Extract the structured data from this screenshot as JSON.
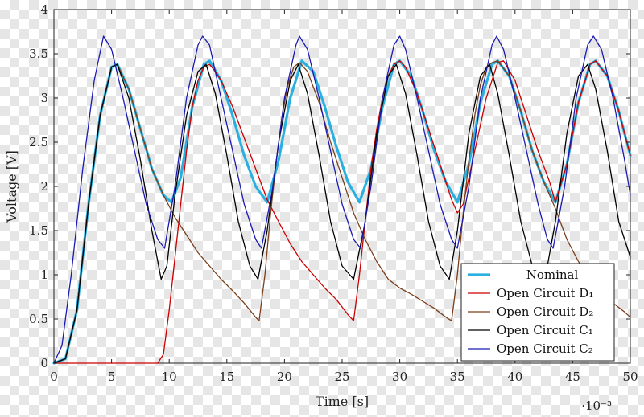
{
  "chart_data": {
    "type": "line",
    "title": "",
    "xlabel": "Time [s]",
    "ylabel": "Voltage [V]",
    "x_scale_note": "·10⁻³",
    "xlim": [
      0,
      50
    ],
    "ylim": [
      0,
      4
    ],
    "x_ticks": [
      "0",
      "5",
      "10",
      "15",
      "20",
      "25",
      "30",
      "35",
      "40",
      "45",
      "50"
    ],
    "y_ticks": [
      "0",
      "0.5",
      "1",
      "1.5",
      "2",
      "2.5",
      "3",
      "3.5",
      "4"
    ],
    "grid": false,
    "legend_position": "bottom-right",
    "series": [
      {
        "name": "Nominal",
        "color": "#2ab0e0",
        "width": 3.2,
        "points": [
          [
            0,
            0
          ],
          [
            1,
            0.05
          ],
          [
            2,
            0.6
          ],
          [
            3,
            1.8
          ],
          [
            4,
            2.8
          ],
          [
            5,
            3.35
          ],
          [
            5.5,
            3.38
          ],
          [
            6.5,
            3.1
          ],
          [
            7.5,
            2.65
          ],
          [
            8.5,
            2.2
          ],
          [
            9.5,
            1.9
          ],
          [
            10.2,
            1.82
          ],
          [
            11,
            2.1
          ],
          [
            12,
            2.9
          ],
          [
            13,
            3.38
          ],
          [
            13.5,
            3.42
          ],
          [
            14.5,
            3.2
          ],
          [
            15.5,
            2.8
          ],
          [
            16.5,
            2.35
          ],
          [
            17.5,
            2.0
          ],
          [
            18.5,
            1.82
          ],
          [
            19.5,
            2.3
          ],
          [
            20.5,
            3.0
          ],
          [
            21.5,
            3.42
          ],
          [
            22.5,
            3.3
          ],
          [
            23.5,
            2.9
          ],
          [
            24.5,
            2.45
          ],
          [
            25.5,
            2.05
          ],
          [
            26.5,
            1.82
          ],
          [
            27.5,
            2.2
          ],
          [
            28.5,
            2.9
          ],
          [
            29.5,
            3.38
          ],
          [
            30,
            3.42
          ],
          [
            31,
            3.25
          ],
          [
            32,
            2.85
          ],
          [
            33,
            2.4
          ],
          [
            34,
            2.05
          ],
          [
            35,
            1.82
          ],
          [
            36,
            2.25
          ],
          [
            37,
            2.95
          ],
          [
            38,
            3.38
          ],
          [
            38.5,
            3.42
          ],
          [
            39.5,
            3.25
          ],
          [
            40.5,
            2.85
          ],
          [
            41.5,
            2.4
          ],
          [
            42.5,
            2.05
          ],
          [
            43.5,
            1.82
          ],
          [
            44.5,
            2.25
          ],
          [
            45.5,
            2.95
          ],
          [
            46.5,
            3.38
          ],
          [
            47,
            3.42
          ],
          [
            48,
            3.25
          ],
          [
            49,
            2.85
          ],
          [
            50,
            2.35
          ]
        ]
      },
      {
        "name": "Open Circuit D₁",
        "color": "#cc0000",
        "width": 1.3,
        "points": [
          [
            0,
            0
          ],
          [
            1,
            0
          ],
          [
            3,
            0
          ],
          [
            5,
            0
          ],
          [
            7,
            0
          ],
          [
            9,
            0
          ],
          [
            9.5,
            0.1
          ],
          [
            10,
            0.6
          ],
          [
            10.5,
            1.2
          ],
          [
            11,
            1.8
          ],
          [
            11.5,
            2.4
          ],
          [
            12,
            2.9
          ],
          [
            12.5,
            3.2
          ],
          [
            13,
            3.35
          ],
          [
            13.5,
            3.38
          ],
          [
            14,
            3.3
          ],
          [
            14.5,
            3.2
          ],
          [
            15.5,
            2.9
          ],
          [
            16.5,
            2.55
          ],
          [
            17.5,
            2.2
          ],
          [
            18.5,
            1.85
          ],
          [
            19.5,
            1.6
          ],
          [
            20.5,
            1.35
          ],
          [
            21.5,
            1.15
          ],
          [
            22.5,
            1.0
          ],
          [
            23.5,
            0.85
          ],
          [
            24.5,
            0.72
          ],
          [
            25.5,
            0.55
          ],
          [
            26,
            0.48
          ],
          [
            26.5,
            1.0
          ],
          [
            27,
            1.6
          ],
          [
            27.5,
            2.2
          ],
          [
            28,
            2.65
          ],
          [
            28.5,
            3.0
          ],
          [
            29,
            3.25
          ],
          [
            29.5,
            3.38
          ],
          [
            30,
            3.42
          ],
          [
            30.5,
            3.35
          ],
          [
            31.5,
            3.05
          ],
          [
            32.5,
            2.65
          ],
          [
            33.5,
            2.25
          ],
          [
            34.5,
            1.85
          ],
          [
            35,
            1.7
          ],
          [
            35.5,
            1.8
          ],
          [
            36.5,
            2.4
          ],
          [
            37.5,
            3.0
          ],
          [
            38.5,
            3.4
          ],
          [
            39,
            3.42
          ],
          [
            40,
            3.2
          ],
          [
            41,
            2.8
          ],
          [
            42,
            2.4
          ],
          [
            43,
            2.05
          ],
          [
            43.5,
            1.82
          ],
          [
            44.5,
            2.25
          ],
          [
            45.5,
            2.95
          ],
          [
            46.5,
            3.38
          ],
          [
            47,
            3.42
          ],
          [
            48,
            3.25
          ],
          [
            49,
            2.85
          ],
          [
            50,
            2.35
          ]
        ]
      },
      {
        "name": "Open Circuit D₂",
        "color": "#7a3f1a",
        "width": 1.3,
        "points": [
          [
            0,
            0
          ],
          [
            1,
            0.05
          ],
          [
            2,
            0.6
          ],
          [
            3,
            1.8
          ],
          [
            4,
            2.8
          ],
          [
            5,
            3.35
          ],
          [
            5.5,
            3.38
          ],
          [
            6.5,
            3.1
          ],
          [
            7.5,
            2.65
          ],
          [
            8.5,
            2.2
          ],
          [
            9.5,
            1.9
          ],
          [
            10.5,
            1.65
          ],
          [
            11.5,
            1.45
          ],
          [
            12.5,
            1.25
          ],
          [
            13.5,
            1.1
          ],
          [
            14.5,
            0.95
          ],
          [
            15.5,
            0.82
          ],
          [
            16.5,
            0.68
          ],
          [
            17.5,
            0.52
          ],
          [
            17.8,
            0.48
          ],
          [
            18.3,
            1.0
          ],
          [
            18.8,
            1.7
          ],
          [
            19.3,
            2.3
          ],
          [
            19.8,
            2.8
          ],
          [
            20.3,
            3.15
          ],
          [
            20.8,
            3.35
          ],
          [
            21.3,
            3.4
          ],
          [
            22,
            3.3
          ],
          [
            23,
            2.95
          ],
          [
            24,
            2.5
          ],
          [
            25,
            2.1
          ],
          [
            26,
            1.7
          ],
          [
            27,
            1.4
          ],
          [
            28,
            1.15
          ],
          [
            29,
            0.95
          ],
          [
            30,
            0.85
          ],
          [
            31,
            0.78
          ],
          [
            32,
            0.7
          ],
          [
            33,
            0.62
          ],
          [
            34,
            0.52
          ],
          [
            34.5,
            0.48
          ],
          [
            35,
            1.0
          ],
          [
            35.5,
            1.7
          ],
          [
            36,
            2.3
          ],
          [
            36.5,
            2.8
          ],
          [
            37,
            3.15
          ],
          [
            37.5,
            3.35
          ],
          [
            38,
            3.4
          ],
          [
            38.5,
            3.42
          ],
          [
            39.5,
            3.25
          ],
          [
            40.5,
            2.85
          ],
          [
            41.5,
            2.4
          ],
          [
            42.5,
            2.05
          ],
          [
            43.5,
            1.75
          ],
          [
            44.5,
            1.4
          ],
          [
            45.5,
            1.15
          ],
          [
            46.5,
            0.95
          ],
          [
            47.5,
            0.8
          ],
          [
            48.5,
            0.68
          ],
          [
            49.5,
            0.58
          ],
          [
            50,
            0.52
          ]
        ]
      },
      {
        "name": "Open Circuit C₁",
        "color": "#000000",
        "width": 1.3,
        "points": [
          [
            0,
            0
          ],
          [
            1,
            0.05
          ],
          [
            2,
            0.6
          ],
          [
            3,
            1.8
          ],
          [
            4,
            2.8
          ],
          [
            5,
            3.35
          ],
          [
            5.5,
            3.38
          ],
          [
            6.5,
            3.0
          ],
          [
            7.5,
            2.3
          ],
          [
            8.5,
            1.5
          ],
          [
            9.3,
            0.95
          ],
          [
            9.8,
            1.1
          ],
          [
            10.5,
            1.9
          ],
          [
            11.5,
            2.8
          ],
          [
            12.5,
            3.3
          ],
          [
            13.2,
            3.38
          ],
          [
            14,
            3.05
          ],
          [
            15,
            2.35
          ],
          [
            16,
            1.6
          ],
          [
            17,
            1.1
          ],
          [
            17.7,
            0.95
          ],
          [
            18.5,
            1.5
          ],
          [
            19.5,
            2.5
          ],
          [
            20.5,
            3.2
          ],
          [
            21.2,
            3.38
          ],
          [
            22,
            3.05
          ],
          [
            23,
            2.35
          ],
          [
            24,
            1.6
          ],
          [
            25,
            1.1
          ],
          [
            26,
            0.95
          ],
          [
            27,
            1.6
          ],
          [
            28,
            2.6
          ],
          [
            29,
            3.25
          ],
          [
            29.7,
            3.38
          ],
          [
            30.5,
            3.05
          ],
          [
            31.5,
            2.35
          ],
          [
            32.5,
            1.6
          ],
          [
            33.5,
            1.1
          ],
          [
            34.3,
            0.95
          ],
          [
            35,
            1.5
          ],
          [
            36,
            2.6
          ],
          [
            37,
            3.25
          ],
          [
            37.8,
            3.38
          ],
          [
            38.5,
            3.05
          ],
          [
            39.5,
            2.35
          ],
          [
            40.5,
            1.6
          ],
          [
            41.5,
            1.1
          ],
          [
            42.6,
            0.95
          ],
          [
            43.5,
            1.6
          ],
          [
            44.5,
            2.6
          ],
          [
            45.5,
            3.25
          ],
          [
            46.3,
            3.38
          ],
          [
            47,
            3.1
          ],
          [
            48,
            2.4
          ],
          [
            49,
            1.6
          ],
          [
            50,
            1.2
          ]
        ]
      },
      {
        "name": "Open Circuit C₂",
        "color": "#1a1ab0",
        "width": 1.3,
        "points": [
          [
            0,
            0
          ],
          [
            0.7,
            0.2
          ],
          [
            1.5,
            1.0
          ],
          [
            2.5,
            2.2
          ],
          [
            3.5,
            3.2
          ],
          [
            4.3,
            3.7
          ],
          [
            5,
            3.55
          ],
          [
            6,
            3.0
          ],
          [
            7,
            2.4
          ],
          [
            8,
            1.8
          ],
          [
            9,
            1.4
          ],
          [
            9.6,
            1.3
          ],
          [
            10.5,
            2.0
          ],
          [
            11.5,
            3.0
          ],
          [
            12.5,
            3.6
          ],
          [
            12.9,
            3.7
          ],
          [
            13.5,
            3.6
          ],
          [
            14.5,
            3.0
          ],
          [
            15.5,
            2.4
          ],
          [
            16.5,
            1.8
          ],
          [
            17.5,
            1.4
          ],
          [
            18,
            1.3
          ],
          [
            19,
            2.0
          ],
          [
            20,
            3.0
          ],
          [
            21,
            3.6
          ],
          [
            21.3,
            3.7
          ],
          [
            22,
            3.55
          ],
          [
            23,
            3.0
          ],
          [
            24,
            2.4
          ],
          [
            25,
            1.8
          ],
          [
            26,
            1.4
          ],
          [
            26.6,
            1.3
          ],
          [
            27.5,
            2.0
          ],
          [
            28.5,
            3.0
          ],
          [
            29.5,
            3.6
          ],
          [
            30,
            3.7
          ],
          [
            30.5,
            3.55
          ],
          [
            31.5,
            3.0
          ],
          [
            32.5,
            2.4
          ],
          [
            33.5,
            1.8
          ],
          [
            34.5,
            1.4
          ],
          [
            35,
            1.3
          ],
          [
            36,
            2.0
          ],
          [
            37,
            3.0
          ],
          [
            38,
            3.6
          ],
          [
            38.4,
            3.7
          ],
          [
            39,
            3.55
          ],
          [
            40,
            3.0
          ],
          [
            41,
            2.4
          ],
          [
            42,
            1.8
          ],
          [
            42.8,
            1.4
          ],
          [
            43.3,
            1.3
          ],
          [
            44.3,
            2.0
          ],
          [
            45.3,
            3.0
          ],
          [
            46.3,
            3.6
          ],
          [
            46.8,
            3.7
          ],
          [
            47.5,
            3.55
          ],
          [
            48.5,
            3.0
          ],
          [
            49.5,
            2.3
          ],
          [
            50,
            1.9
          ]
        ]
      }
    ]
  }
}
